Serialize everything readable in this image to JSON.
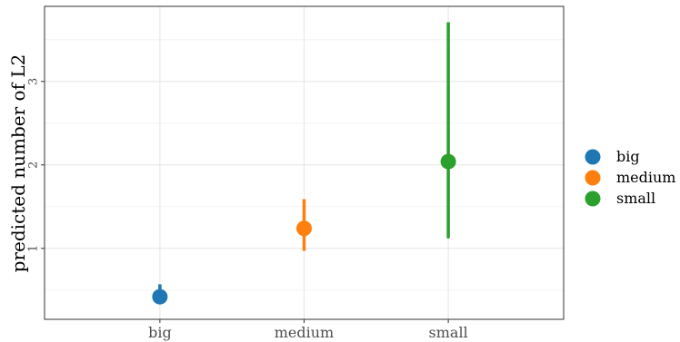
{
  "chart_data": {
    "type": "scatter",
    "title": "",
    "xlabel": "",
    "ylabel": "predicted number of L2",
    "categories": [
      "big",
      "medium",
      "small"
    ],
    "series": [
      {
        "name": "big",
        "color": "#1f77b4",
        "x": "big",
        "y": 0.42,
        "lower": 0.37,
        "upper": 0.57
      },
      {
        "name": "medium",
        "color": "#ff7f0e",
        "x": "medium",
        "y": 1.24,
        "lower": 0.97,
        "upper": 1.59
      },
      {
        "name": "small",
        "color": "#2ca02c",
        "x": "small",
        "y": 2.04,
        "lower": 1.12,
        "upper": 3.71
      }
    ],
    "yticks": [
      1,
      2,
      3
    ],
    "ylim": [
      0.15,
      3.9
    ],
    "grid": true,
    "legend": "right"
  }
}
